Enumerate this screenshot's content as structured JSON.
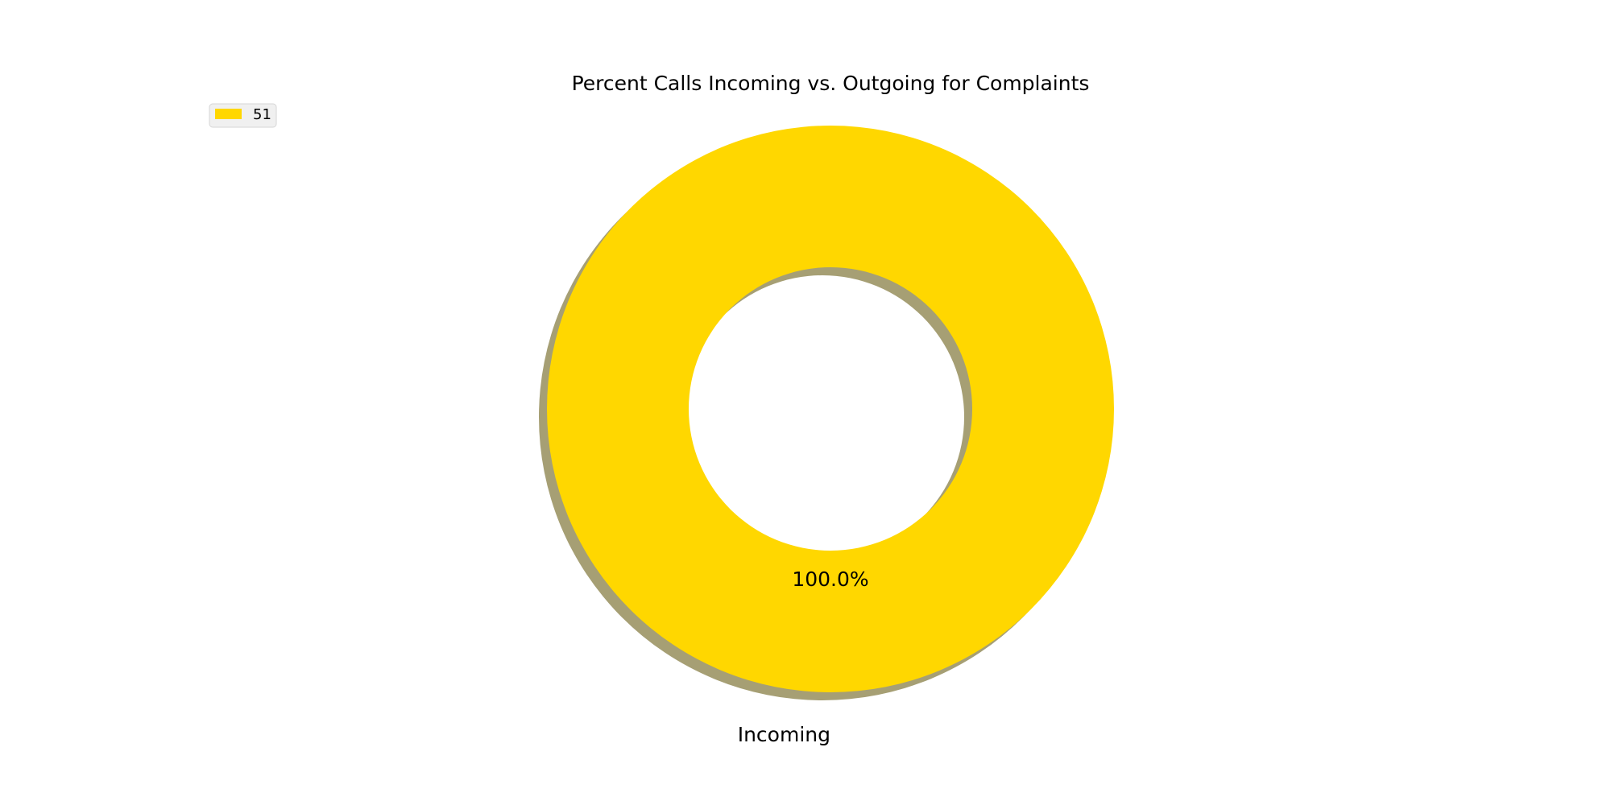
{
  "chart_data": {
    "type": "pie",
    "variant": "donut",
    "title": "Percent Calls Incoming vs. Outgoing for Complaints",
    "categories": [
      "Incoming"
    ],
    "values": [
      51
    ],
    "percent_labels": [
      "100.0%"
    ],
    "legend": {
      "placement": "upper-left",
      "entries": [
        "51"
      ]
    },
    "colors": {
      "slice": "#FFD700",
      "shadow": "#A69F74"
    },
    "shadow": true,
    "grid": false
  }
}
